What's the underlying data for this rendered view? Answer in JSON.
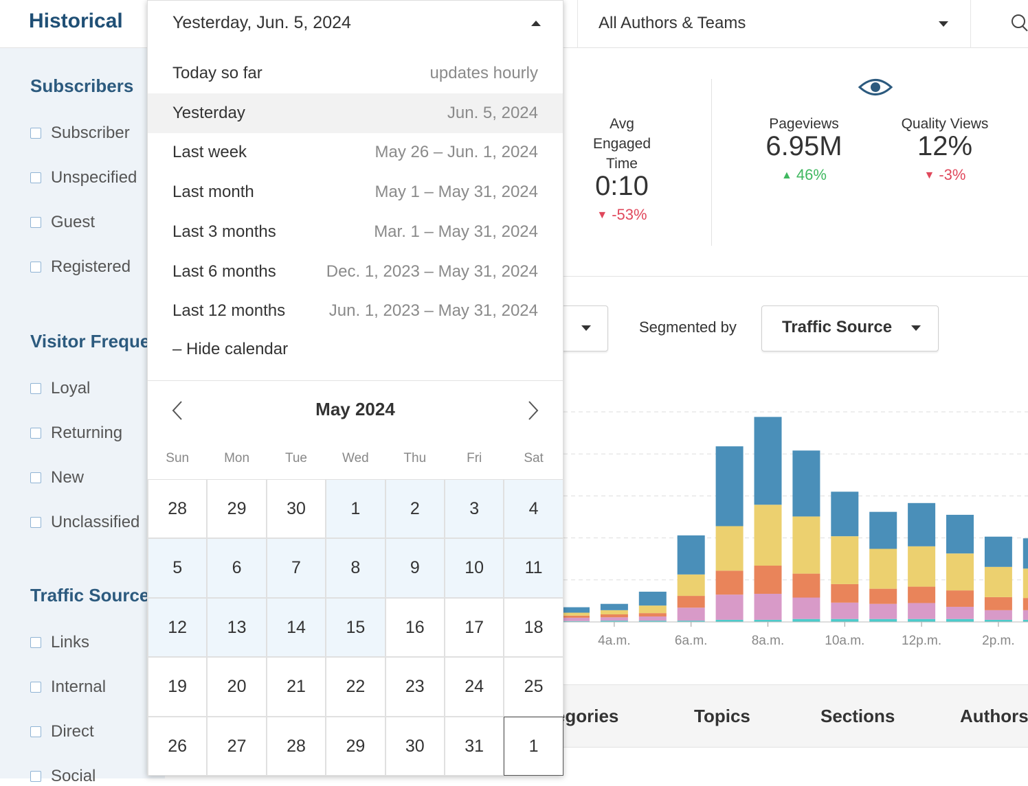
{
  "header": {
    "title": "Historical",
    "date_selector": "Yesterday, Jun. 5, 2024",
    "author_filter": "All Authors & Teams"
  },
  "sidebar": {
    "sections": [
      {
        "title": "Subscribers",
        "items": [
          "Subscriber",
          "Unspecified",
          "Guest",
          "Registered"
        ]
      },
      {
        "title": "Visitor Frequency",
        "items": [
          "Loyal",
          "Returning",
          "New",
          "Unclassified"
        ]
      },
      {
        "title": "Traffic Source",
        "items": [
          "Links",
          "Internal",
          "Direct",
          "Social"
        ]
      }
    ]
  },
  "metrics": [
    {
      "label": "Avg Engaged Time",
      "value": "0:10",
      "change": "-53%",
      "trend": "down"
    },
    {
      "label": "Pageviews",
      "value": "6.95M",
      "change": "46%",
      "trend": "up"
    },
    {
      "label": "Quality Views",
      "value": "12%",
      "change": "-3%",
      "trend": "down"
    }
  ],
  "controls": {
    "segmented_by_label": "Segmented by",
    "segment": "Traffic Source"
  },
  "chart": {
    "type": "bar",
    "stacked": true,
    "categories": [
      null,
      "4a.m.",
      null,
      "6a.m.",
      null,
      "8a.m.",
      null,
      "10a.m.",
      null,
      "12p.m.",
      null,
      "2p.m.",
      null
    ],
    "ylim": [
      0,
      5
    ],
    "grid": true,
    "series": [
      {
        "color": "#4ccbcb",
        "values": [
          0.02,
          0.03,
          0.03,
          0.03,
          0.05,
          0.05,
          0.07,
          0.07,
          0.07,
          0.07,
          0.07,
          0.05,
          0.05
        ]
      },
      {
        "color": "#d89ac8",
        "values": [
          0.08,
          0.08,
          0.1,
          0.31,
          0.6,
          0.62,
          0.51,
          0.39,
          0.36,
          0.38,
          0.29,
          0.23,
          0.23
        ]
      },
      {
        "color": "#e9845a",
        "values": [
          0.05,
          0.07,
          0.08,
          0.28,
          0.57,
          0.67,
          0.57,
          0.44,
          0.36,
          0.39,
          0.39,
          0.31,
          0.29
        ]
      },
      {
        "color": "#ecd06f",
        "values": [
          0.07,
          0.1,
          0.18,
          0.51,
          1.06,
          1.45,
          1.36,
          1.14,
          0.95,
          0.96,
          0.88,
          0.72,
          0.7
        ]
      },
      {
        "color": "#4a8fb9",
        "values": [
          0.13,
          0.15,
          0.33,
          0.93,
          1.9,
          2.09,
          1.57,
          1.06,
          0.88,
          1.03,
          0.92,
          0.72,
          0.72
        ]
      }
    ]
  },
  "tabs": [
    "Categories",
    "Topics",
    "Sections",
    "Authors"
  ],
  "date_menu": {
    "options": [
      {
        "label": "Today so far",
        "range": "updates hourly"
      },
      {
        "label": "Yesterday",
        "range": "Jun. 5, 2024"
      },
      {
        "label": "Last week",
        "range": "May 26 – Jun. 1, 2024"
      },
      {
        "label": "Last month",
        "range": "May 1 – May 31, 2024"
      },
      {
        "label": "Last 3 months",
        "range": "Mar. 1 – May 31, 2024"
      },
      {
        "label": "Last 6 months",
        "range": "Dec. 1, 2023 – May 31, 2024"
      },
      {
        "label": "Last 12 months",
        "range": "Jun. 1, 2023 – May 31, 2024"
      }
    ],
    "selected": 1,
    "hide_calendar": "– Hide calendar"
  },
  "calendar": {
    "month": "May 2024",
    "weekdays": [
      "Sun",
      "Mon",
      "Tue",
      "Wed",
      "Thu",
      "Fri",
      "Sat"
    ],
    "weeks": [
      [
        28,
        29,
        30,
        1,
        2,
        3,
        4
      ],
      [
        5,
        6,
        7,
        8,
        9,
        10,
        11
      ],
      [
        12,
        13,
        14,
        15,
        16,
        17,
        18
      ],
      [
        19,
        20,
        21,
        22,
        23,
        24,
        25
      ],
      [
        26,
        27,
        28,
        29,
        30,
        31,
        1
      ]
    ],
    "range_start": 1,
    "range_end": 15
  }
}
